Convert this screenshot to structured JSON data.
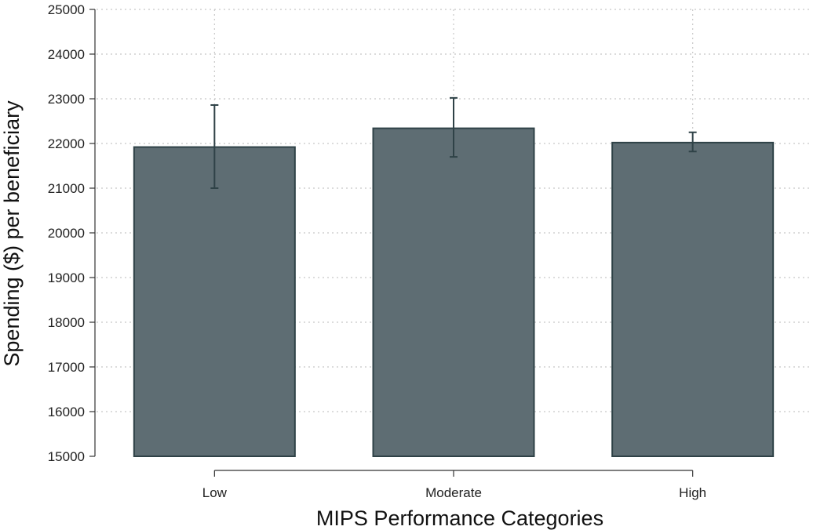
{
  "chart_data": {
    "type": "bar",
    "categories": [
      "Low",
      "Moderate",
      "High"
    ],
    "values": [
      21920,
      22340,
      22020
    ],
    "error_low": [
      21000,
      21700,
      21820
    ],
    "error_high": [
      22860,
      23020,
      22250
    ],
    "xlabel": "MIPS Performance Categories",
    "ylabel": "Spending ($) per beneficiary",
    "ylim": [
      15000,
      25000
    ],
    "yticks": [
      15000,
      16000,
      17000,
      18000,
      19000,
      20000,
      21000,
      22000,
      23000,
      24000,
      25000
    ],
    "grid": true,
    "colors": {
      "bar": "#5e6d73",
      "outline": "#2f4247"
    }
  }
}
